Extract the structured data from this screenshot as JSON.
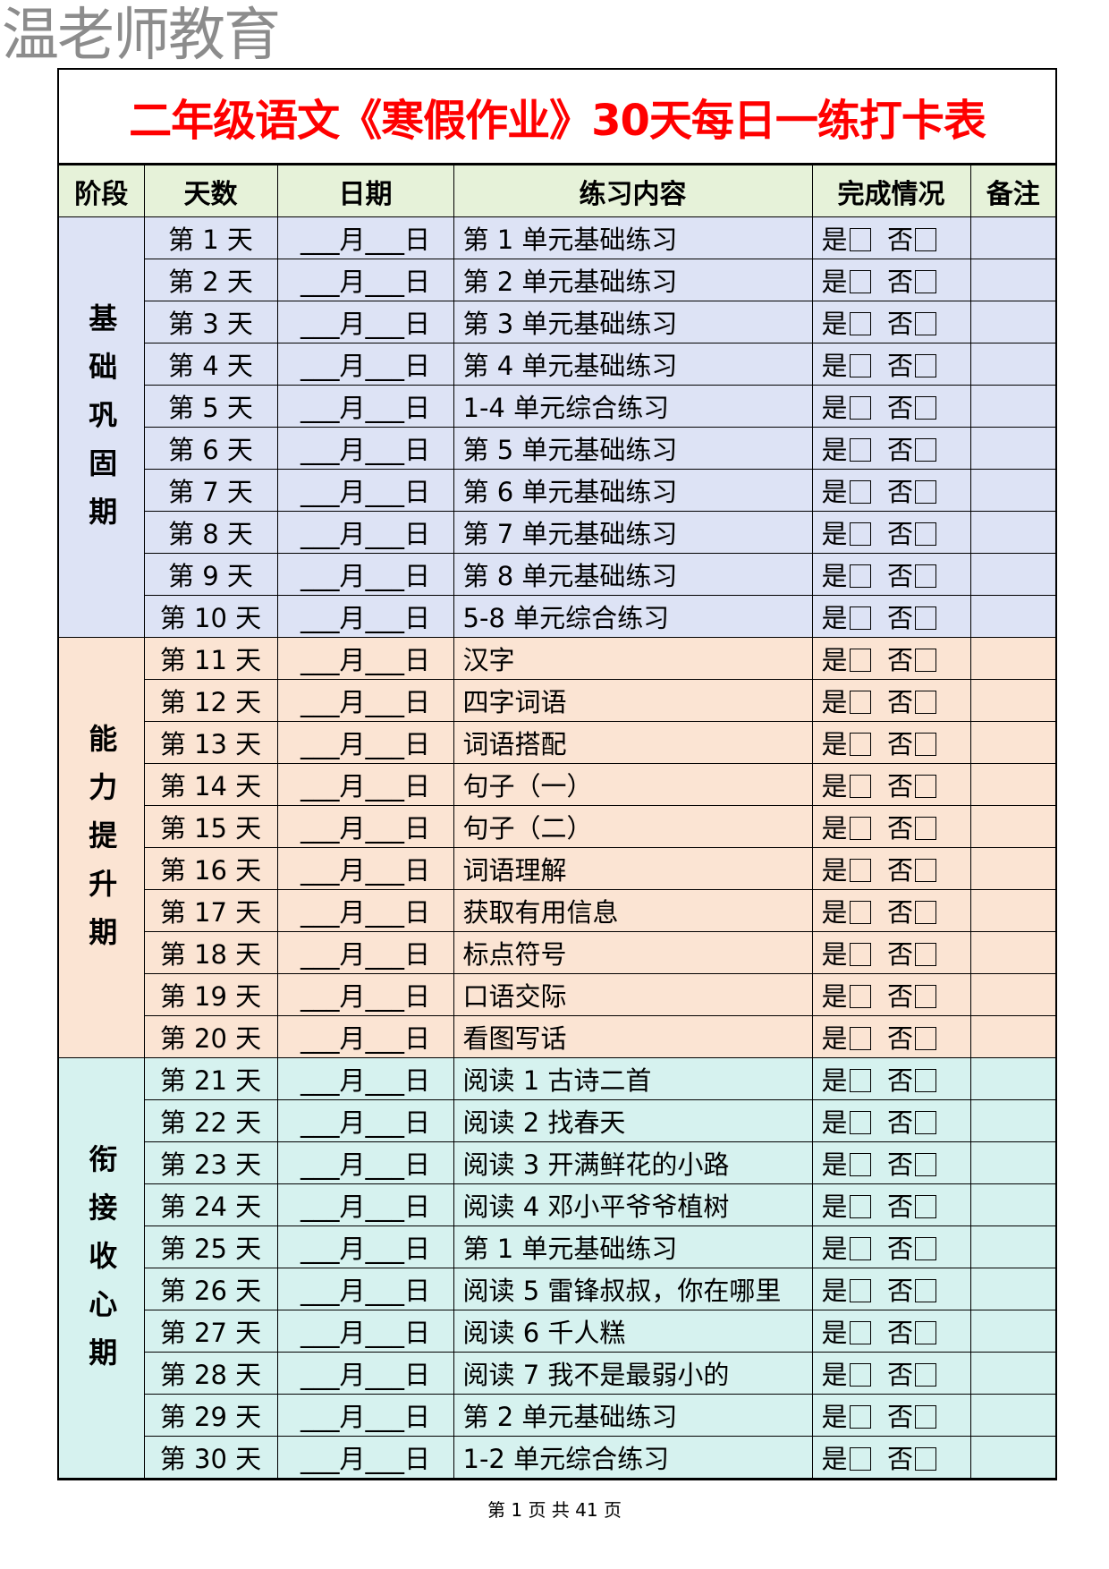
{
  "watermark": "温老师教育",
  "title": "二年级语文《寒假作业》30天每日一练打卡表",
  "headers": [
    "阶段",
    "天数",
    "日期",
    "练习内容",
    "完成情况",
    "备注"
  ],
  "date_template": "___月___日",
  "yes_label": "是",
  "no_label": "否",
  "colors": {
    "title": "#ff0000",
    "header": "#e6f2d9",
    "stage1": "#dde3f5",
    "stage2": "#fbe4d3",
    "stage3": "#d6f2ef"
  },
  "stages": [
    {
      "name": "基础巩固期",
      "rows": [
        {
          "day": "第 1 天",
          "content": "第 1 单元基础练习"
        },
        {
          "day": "第 2 天",
          "content": "第 2 单元基础练习"
        },
        {
          "day": "第 3 天",
          "content": "第 3 单元基础练习"
        },
        {
          "day": "第 4 天",
          "content": "第 4 单元基础练习"
        },
        {
          "day": "第 5 天",
          "content": "1-4 单元综合练习"
        },
        {
          "day": "第 6 天",
          "content": "第 5 单元基础练习"
        },
        {
          "day": "第 7 天",
          "content": "第 6 单元基础练习"
        },
        {
          "day": "第 8 天",
          "content": "第 7 单元基础练习"
        },
        {
          "day": "第 9 天",
          "content": "第 8 单元基础练习"
        },
        {
          "day": "第 10 天",
          "content": "5-8 单元综合练习"
        }
      ]
    },
    {
      "name": "能力提升期",
      "rows": [
        {
          "day": "第 11 天",
          "content": "汉字"
        },
        {
          "day": "第 12 天",
          "content": "四字词语"
        },
        {
          "day": "第 13 天",
          "content": "词语搭配"
        },
        {
          "day": "第 14 天",
          "content": "句子（一）"
        },
        {
          "day": "第 15 天",
          "content": "句子（二）"
        },
        {
          "day": "第 16 天",
          "content": "词语理解"
        },
        {
          "day": "第 17 天",
          "content": "获取有用信息"
        },
        {
          "day": "第 18 天",
          "content": "标点符号"
        },
        {
          "day": "第 19 天",
          "content": "口语交际"
        },
        {
          "day": "第 20 天",
          "content": "看图写话"
        }
      ]
    },
    {
      "name": "衔接收心期",
      "rows": [
        {
          "day": "第 21 天",
          "content": "阅读 1  古诗二首"
        },
        {
          "day": "第 22 天",
          "content": "阅读 2  找春天"
        },
        {
          "day": "第 23 天",
          "content": "阅读 3  开满鲜花的小路"
        },
        {
          "day": "第 24 天",
          "content": "阅读 4  邓小平爷爷植树"
        },
        {
          "day": "第 25 天",
          "content": "第 1 单元基础练习"
        },
        {
          "day": "第 26 天",
          "content": "阅读 5  雷锋叔叔，你在哪里"
        },
        {
          "day": "第 27 天",
          "content": "阅读 6  千人糕"
        },
        {
          "day": "第 28 天",
          "content": "阅读 7  我不是最弱小的"
        },
        {
          "day": "第 29 天",
          "content": "第 2 单元基础练习"
        },
        {
          "day": "第 30 天",
          "content": "1-2 单元综合练习"
        }
      ]
    }
  ],
  "footer": "第 1 页 共 41 页"
}
